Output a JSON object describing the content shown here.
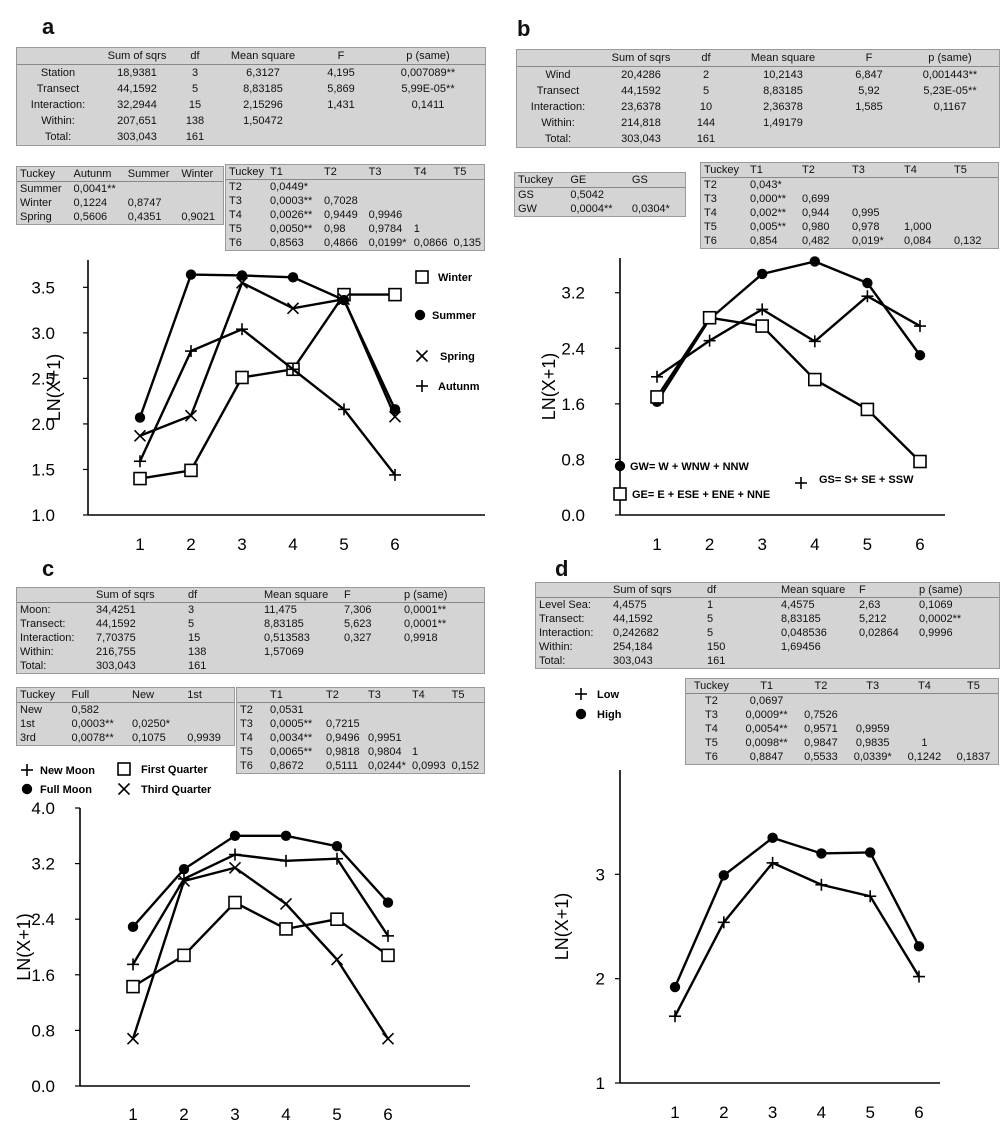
{
  "panels": [
    {
      "label": "a",
      "anova": {
        "headers": [
          "",
          "Sum of sqrs",
          "df",
          "Mean square",
          "F",
          "p (same)"
        ],
        "rows": [
          [
            "Station",
            "18,9381",
            "3",
            "6,3127",
            "4,195",
            "0,007089**"
          ],
          [
            "Transect",
            "44,1592",
            "5",
            "8,83185",
            "5,869",
            "5,99E-05**"
          ],
          [
            "Interaction:",
            "32,2944",
            "15",
            "2,15296",
            "1,431",
            "0,1411"
          ],
          [
            "Within:",
            "207,651",
            "138",
            "1,50472",
            "",
            ""
          ],
          [
            "Total:",
            "303,043",
            "161",
            "",
            "",
            ""
          ]
        ]
      },
      "tukey_factor": {
        "headers": [
          "Tuckey",
          "Autunm",
          "Summer",
          "Winter"
        ],
        "rows": [
          [
            "Summer",
            "0,0041**",
            "",
            ""
          ],
          [
            "Winter",
            "0,1224",
            "0,8747",
            ""
          ],
          [
            "Spring",
            "0,5606",
            "0,4351",
            "0,9021"
          ]
        ]
      },
      "tukey_transect": {
        "headers": [
          "Tuckey",
          "T1",
          "T2",
          "T3",
          "T4",
          "T5"
        ],
        "rows": [
          [
            "T2",
            "0,0449*",
            "",
            "",
            "",
            ""
          ],
          [
            "T3",
            "0,0003**",
            "0,7028",
            "",
            "",
            ""
          ],
          [
            "T4",
            "0,0026**",
            "0,9449",
            "0,9946",
            "",
            ""
          ],
          [
            "T5",
            "0,0050**",
            "0,98",
            "0,9784",
            "1",
            ""
          ],
          [
            "T6",
            "0,8563",
            "0,4866",
            "0,0199*",
            "0,0866",
            "0,135"
          ]
        ]
      }
    },
    {
      "label": "b",
      "anova": {
        "headers": [
          "",
          "Sum of sqrs",
          "df",
          "Mean square",
          "F",
          "p (same)"
        ],
        "rows": [
          [
            "Wind",
            "20,4286",
            "2",
            "10,2143",
            "6,847",
            "0,001443**"
          ],
          [
            "Transect",
            "44,1592",
            "5",
            "8,83185",
            "5,92",
            "5,23E-05**"
          ],
          [
            "Interaction:",
            "23,6378",
            "10",
            "2,36378",
            "1,585",
            "0,1167"
          ],
          [
            "Within:",
            "214,818",
            "144",
            "1,49179",
            "",
            ""
          ],
          [
            "Total:",
            "303,043",
            "161",
            "",
            "",
            ""
          ]
        ]
      },
      "tukey_factor": {
        "headers": [
          "Tuckey",
          "GE",
          "GS"
        ],
        "rows": [
          [
            "GS",
            "0,5042",
            ""
          ],
          [
            "GW",
            "0,0004**",
            "0,0304*"
          ]
        ]
      },
      "tukey_transect": {
        "headers": [
          "Tuckey",
          "T1",
          "T2",
          "T3",
          "T4",
          "T5"
        ],
        "rows": [
          [
            "T2",
            "0,043*",
            "",
            "",
            "",
            ""
          ],
          [
            "T3",
            "0,000**",
            "0,699",
            "",
            "",
            ""
          ],
          [
            "T4",
            "0,002**",
            "0,944",
            "0,995",
            "",
            ""
          ],
          [
            "T5",
            "0,005**",
            "0,980",
            "0,978",
            "1,000",
            ""
          ],
          [
            "T6",
            "0,854",
            "0,482",
            "0,019*",
            "0,084",
            "0,132"
          ]
        ]
      }
    },
    {
      "label": "c",
      "anova": {
        "headers": [
          "",
          "Sum of sqrs",
          "df",
          "Mean square",
          "F",
          "p (same)"
        ],
        "rows": [
          [
            "Moon:",
            "34,4251",
            "3",
            "11,475",
            "7,306",
            "0,0001**"
          ],
          [
            "Transect:",
            "44,1592",
            "5",
            "8,83185",
            "5,623",
            "0,0001**"
          ],
          [
            "Interaction:",
            "7,70375",
            "15",
            "0,513583",
            "0,327",
            "0,9918"
          ],
          [
            "Within:",
            "216,755",
            "138",
            "1,57069",
            "",
            ""
          ],
          [
            "Total:",
            "303,043",
            "161",
            "",
            "",
            ""
          ]
        ]
      },
      "tukey_factor": {
        "headers": [
          "Tuckey",
          "Full",
          "New",
          "1st"
        ],
        "rows": [
          [
            "New",
            "0,582",
            "",
            ""
          ],
          [
            "1st",
            "0,0003**",
            "0,0250*",
            ""
          ],
          [
            "3rd",
            "0,0078**",
            "0,1075",
            "0,9939"
          ]
        ]
      },
      "tukey_transect": {
        "headers": [
          "",
          "T1",
          "T2",
          "T3",
          "T4",
          "T5"
        ],
        "rows": [
          [
            "T2",
            "0,0531",
            "",
            "",
            "",
            ""
          ],
          [
            "T3",
            "0,0005**",
            "0,7215",
            "",
            "",
            ""
          ],
          [
            "T4",
            "0,0034**",
            "0,9496",
            "0,9951",
            "",
            ""
          ],
          [
            "T5",
            "0,0065**",
            "0,9818",
            "0,9804",
            "1",
            ""
          ],
          [
            "T6",
            "0,8672",
            "0,5111",
            "0,0244*",
            "0,0993",
            "0,152"
          ]
        ]
      }
    },
    {
      "label": "d",
      "anova": {
        "headers": [
          "",
          "Sum of sqrs",
          "df",
          "Mean square",
          "F",
          "p (same)"
        ],
        "rows": [
          [
            "Level Sea:",
            "4,4575",
            "1",
            "4,4575",
            "2,63",
            "0,1069"
          ],
          [
            "Transect:",
            "44,1592",
            "5",
            "8,83185",
            "5,212",
            "0,0002**"
          ],
          [
            "Interaction:",
            "0,242682",
            "5",
            "0,048536",
            "0,02864",
            "0,9996"
          ],
          [
            "Within:",
            "254,184",
            "150",
            "1,69456",
            "",
            ""
          ],
          [
            "Total:",
            "303,043",
            "161",
            "",
            "",
            ""
          ]
        ]
      },
      "tukey_transect": {
        "headers": [
          "Tuckey",
          "T1",
          "T2",
          "T3",
          "T4",
          "T5"
        ],
        "rows": [
          [
            "T2",
            "0,0697",
            "",
            "",
            "",
            ""
          ],
          [
            "T3",
            "0,0009**",
            "0,7526",
            "",
            "",
            ""
          ],
          [
            "T4",
            "0,0054**",
            "0,9571",
            "0,9959",
            "",
            ""
          ],
          [
            "T5",
            "0,0098**",
            "0,9847",
            "0,9835",
            "1",
            ""
          ],
          [
            "T6",
            "0,8847",
            "0,5533",
            "0,0339*",
            "0,1242",
            "0,1837"
          ]
        ]
      }
    }
  ],
  "chart_data": [
    {
      "id": "a",
      "type": "line",
      "ylabel": "LN(X+1)",
      "categories": [
        "1",
        "2",
        "3",
        "4",
        "5",
        "6"
      ],
      "ylim": [
        1.0,
        3.8
      ],
      "yticks": [
        1.0,
        1.5,
        2.0,
        2.5,
        3.0,
        3.5
      ],
      "ytick_labels": [
        "1.0",
        "1.5",
        "2.0",
        "2.5",
        "3.0",
        "3.5"
      ],
      "series": [
        {
          "name": "Winter",
          "marker": "square",
          "values": [
            1.4,
            1.49,
            2.51,
            2.6,
            3.42,
            3.42
          ]
        },
        {
          "name": "Summer",
          "marker": "circle",
          "values": [
            2.07,
            3.64,
            3.63,
            3.61,
            3.36,
            2.16
          ]
        },
        {
          "name": "Spring",
          "marker": "x",
          "values": [
            1.87,
            2.09,
            3.55,
            3.27,
            3.37,
            2.08
          ]
        },
        {
          "name": "Autunm",
          "marker": "plus",
          "values": [
            1.59,
            2.8,
            3.04,
            2.6,
            2.16,
            1.44
          ]
        }
      ]
    },
    {
      "id": "b",
      "type": "line",
      "ylabel": "LN(X+1)",
      "categories": [
        "1",
        "2",
        "3",
        "4",
        "5",
        "6"
      ],
      "ylim": [
        0.0,
        3.7
      ],
      "yticks": [
        0.0,
        0.8,
        1.6,
        2.4,
        3.2
      ],
      "ytick_labels": [
        "0.0",
        "0.8",
        "1.6",
        "2.4",
        "3.2"
      ],
      "series": [
        {
          "name": "GW= W + WNW + NNW",
          "marker": "circle",
          "values": [
            1.63,
            2.82,
            3.47,
            3.65,
            3.34,
            2.3
          ]
        },
        {
          "name": "GE= E + ESE + ENE + NNE",
          "marker": "square",
          "values": [
            1.7,
            2.84,
            2.72,
            1.95,
            1.52,
            0.77
          ]
        },
        {
          "name": "GS= S+ SE + SSW",
          "marker": "plus",
          "values": [
            1.99,
            2.51,
            2.96,
            2.5,
            3.15,
            2.72
          ]
        }
      ]
    },
    {
      "id": "c",
      "type": "line",
      "ylabel": "LN(X+1)",
      "categories": [
        "1",
        "2",
        "3",
        "4",
        "5",
        "6"
      ],
      "ylim": [
        0.0,
        4.0
      ],
      "yticks": [
        0.0,
        0.8,
        1.6,
        2.4,
        3.2,
        4.0
      ],
      "ytick_labels": [
        "0.0",
        "0.8",
        "1.6",
        "2.4",
        "3.2",
        "4.0"
      ],
      "series": [
        {
          "name": "New Moon",
          "marker": "plus",
          "values": [
            1.75,
            2.98,
            3.33,
            3.24,
            3.27,
            2.16
          ]
        },
        {
          "name": "Full Moon",
          "marker": "circle",
          "values": [
            2.29,
            3.12,
            3.6,
            3.6,
            3.45,
            2.64
          ]
        },
        {
          "name": "First Quarter",
          "marker": "square",
          "values": [
            1.43,
            1.88,
            2.64,
            2.26,
            2.4,
            1.88
          ]
        },
        {
          "name": "Third Quarter",
          "marker": "x",
          "values": [
            0.68,
            2.95,
            3.14,
            2.62,
            1.82,
            0.68
          ]
        }
      ]
    },
    {
      "id": "d",
      "type": "line",
      "ylabel": "LN(X+1)",
      "categories": [
        "1",
        "2",
        "3",
        "4",
        "5",
        "6"
      ],
      "ylim": [
        1.0,
        4.0
      ],
      "yticks": [
        1,
        2,
        3
      ],
      "ytick_labels": [
        "1",
        "2",
        "3"
      ],
      "series": [
        {
          "name": "Low",
          "marker": "plus",
          "values": [
            1.64,
            2.54,
            3.11,
            2.9,
            2.79,
            2.02
          ]
        },
        {
          "name": "High",
          "marker": "circle",
          "values": [
            1.92,
            2.99,
            3.35,
            3.2,
            3.21,
            2.31
          ]
        }
      ]
    }
  ]
}
